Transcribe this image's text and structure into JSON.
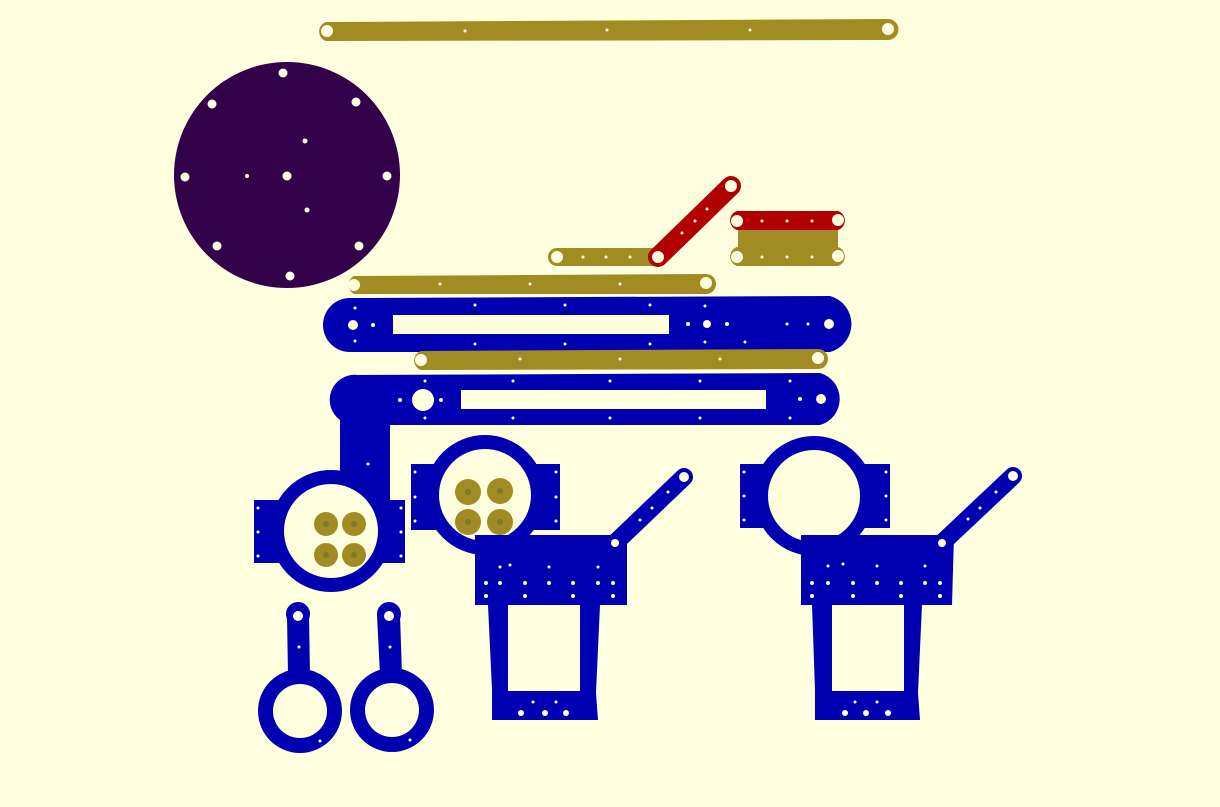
{
  "colors": {
    "background": "#ffffe0",
    "olive": "#a08c22",
    "blue": "#0000b0",
    "purple": "#33004a",
    "red": "#b00000",
    "hole": "#ffffe0"
  },
  "parts": [
    "long-olive-link",
    "purple-base-disc",
    "short-olive-link",
    "red-diagonal-link",
    "red-short-link",
    "olive-plate",
    "olive-long-link-2",
    "blue-arm-upper",
    "olive-long-link-3",
    "blue-arm-lower",
    "blue-ring-mount-left",
    "blue-ring-mount-middle",
    "blue-servo-bracket-left",
    "blue-ring-mount-right",
    "blue-servo-bracket-right",
    "blue-finger-ring-left",
    "blue-finger-ring-right"
  ]
}
